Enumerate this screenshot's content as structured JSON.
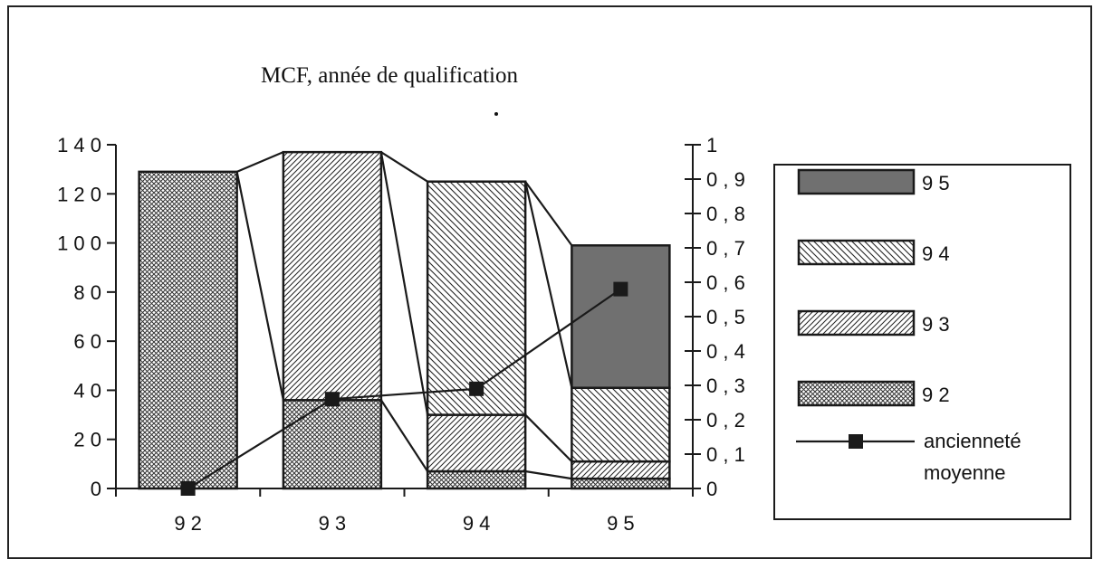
{
  "chart_data": {
    "type": "bar",
    "stacked": true,
    "title": "MCF, année de qualification",
    "categories": [
      "9 2",
      "9 3",
      "9 4",
      "9 5"
    ],
    "y_left": {
      "ticks": [
        "0",
        "2 0",
        "4 0",
        "6 0",
        "8 0",
        "1 0 0",
        "1 2 0",
        "1 4 0"
      ],
      "ylim": [
        0,
        140
      ]
    },
    "y_right": {
      "ticks": [
        "0",
        "0 , 1",
        "0 , 2",
        "0 , 3",
        "0 , 4",
        "0 , 5",
        "0 , 6",
        "0 , 7",
        "0 , 8",
        "0 , 9",
        "1"
      ],
      "ylim": [
        0,
        1
      ]
    },
    "series": [
      {
        "name": "9 2",
        "values": [
          129,
          36,
          7,
          4
        ],
        "pattern": "crosshatch"
      },
      {
        "name": "9 3",
        "values": [
          0,
          101,
          23,
          7
        ],
        "pattern": "diag-right"
      },
      {
        "name": "9 4",
        "values": [
          0,
          0,
          95,
          30
        ],
        "pattern": "diag-left"
      },
      {
        "name": "9 5",
        "values": [
          0,
          0,
          0,
          58
        ],
        "pattern": "dark-fill"
      }
    ],
    "line_series": {
      "name": "ancienneté moyenne",
      "axis": "right",
      "values": [
        0,
        0.26,
        0.29,
        0.58
      ]
    },
    "legend": {
      "placement": "right",
      "items": [
        "9 5",
        "9 4",
        "9 3",
        "9 2"
      ],
      "line_label_1": "ancienneté",
      "line_label_2": "moyenne"
    },
    "colors": {
      "dark_fill": "#707070",
      "stroke": "#1a1a1a"
    }
  }
}
